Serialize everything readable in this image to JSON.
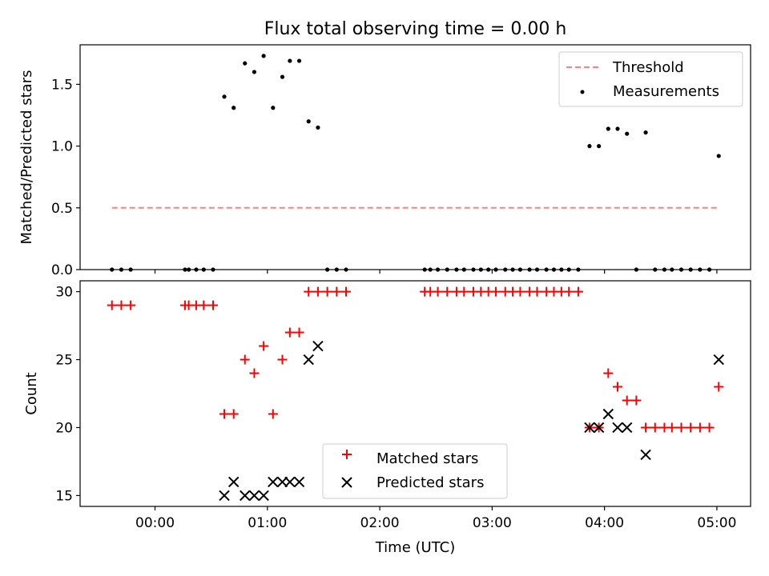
{
  "figure": {
    "title": "Flux total observing time = 0.00 h"
  },
  "chart_data": [
    {
      "type": "scatter",
      "ylabel": "Matched/Predicted stars",
      "xlim": [
        -0.6667,
        5.3
      ],
      "ylim": [
        0,
        1.82
      ],
      "yticks": [
        0.0,
        0.5,
        1.0,
        1.5
      ],
      "ytick_labels": [
        "0.0",
        "0.5",
        "1.0",
        "1.5"
      ],
      "grid": false,
      "legend": {
        "position": "top-right",
        "entries": [
          "Threshold",
          "Measurements"
        ]
      },
      "threshold": {
        "name": "Threshold",
        "y": 0.5,
        "x": [
          -0.3833,
          5.0167
        ],
        "color": "#ff8080",
        "style": "dashed"
      },
      "measurements": {
        "name": "Measurements",
        "color": "#000000",
        "x": [
          -0.3833,
          -0.3,
          -0.2167,
          0.2667,
          0.3,
          0.3667,
          0.4333,
          0.5167,
          0.6167,
          0.7,
          0.8,
          0.8833,
          0.9667,
          1.05,
          1.1333,
          1.2,
          1.2833,
          1.3667,
          1.45,
          1.5333,
          1.6167,
          1.7,
          2.4,
          2.45,
          2.5167,
          2.6,
          2.6833,
          2.75,
          2.8333,
          2.9,
          2.9667,
          3.0333,
          3.1167,
          3.1833,
          3.25,
          3.3333,
          3.4,
          3.4833,
          3.55,
          3.6167,
          3.6833,
          3.7667,
          3.8667,
          3.95,
          4.0333,
          4.1167,
          4.2,
          4.2833,
          4.3667,
          4.45,
          4.5333,
          4.6,
          4.6833,
          4.7667,
          4.85,
          4.9333,
          5.0167
        ],
        "y": [
          0,
          0,
          0,
          0,
          0,
          0,
          0,
          0,
          1.4,
          1.31,
          1.67,
          1.6,
          1.73,
          1.31,
          1.56,
          1.69,
          1.69,
          1.2,
          1.15,
          0,
          0,
          0,
          0,
          0,
          0,
          0,
          0,
          0,
          0,
          0,
          0,
          0,
          0,
          0,
          0,
          0,
          0,
          0,
          0,
          0,
          0,
          0,
          1.0,
          1.0,
          1.14,
          1.14,
          1.1,
          0,
          1.11,
          0,
          0,
          0,
          0,
          0,
          0,
          0,
          0.92
        ]
      }
    },
    {
      "type": "scatter",
      "xlabel": "Time (UTC)",
      "ylabel": "Count",
      "xlim": [
        -0.6667,
        5.3
      ],
      "ylim": [
        14.2,
        30.8
      ],
      "xticks": [
        0,
        1,
        2,
        3,
        4,
        5
      ],
      "xtick_labels": [
        "00:00",
        "01:00",
        "02:00",
        "03:00",
        "04:00",
        "05:00"
      ],
      "yticks": [
        15,
        20,
        25,
        30
      ],
      "ytick_labels": [
        "15",
        "20",
        "25",
        "30"
      ],
      "grid": false,
      "legend": {
        "position": "lower-center",
        "entries": [
          "Matched stars",
          "Predicted stars"
        ]
      },
      "matched": {
        "name": "Matched stars",
        "color": "#ff0000",
        "marker": "plus",
        "x": [
          -0.3833,
          -0.3,
          -0.2167,
          0.2667,
          0.3,
          0.3667,
          0.4333,
          0.5167,
          0.6167,
          0.7,
          0.8,
          0.8833,
          0.9667,
          1.05,
          1.1333,
          1.2,
          1.2833,
          1.3667,
          1.45,
          1.5333,
          1.6167,
          1.7,
          2.4,
          2.45,
          2.5167,
          2.6,
          2.6833,
          2.75,
          2.8333,
          2.9,
          2.9667,
          3.0333,
          3.1167,
          3.1833,
          3.25,
          3.3333,
          3.4,
          3.4833,
          3.55,
          3.6167,
          3.6833,
          3.7667,
          3.8667,
          3.95,
          4.0333,
          4.1167,
          4.2,
          4.2833,
          4.3667,
          4.45,
          4.5333,
          4.6,
          4.6833,
          4.7667,
          4.85,
          4.9333,
          5.0167
        ],
        "y": [
          29,
          29,
          29,
          29,
          29,
          29,
          29,
          29,
          21,
          21,
          25,
          24,
          26,
          21,
          25,
          27,
          27,
          30,
          30,
          30,
          30,
          30,
          30,
          30,
          30,
          30,
          30,
          30,
          30,
          30,
          30,
          30,
          30,
          30,
          30,
          30,
          30,
          30,
          30,
          30,
          30,
          30,
          20,
          20,
          24,
          23,
          22,
          22,
          20,
          20,
          20,
          20,
          20,
          20,
          20,
          20,
          23
        ]
      },
      "predicted": {
        "name": "Predicted stars",
        "color": "#000000",
        "marker": "x",
        "x": [
          0.6167,
          0.7,
          0.8,
          0.8833,
          0.9667,
          1.05,
          1.1333,
          1.2,
          1.2833,
          1.3667,
          1.45,
          3.8667,
          3.95,
          4.0333,
          4.1167,
          4.2,
          4.3667,
          5.0167
        ],
        "y": [
          15,
          16,
          15,
          15,
          15,
          16,
          16,
          16,
          16,
          25,
          26,
          20,
          20,
          21,
          20,
          20,
          18,
          25
        ]
      }
    }
  ]
}
